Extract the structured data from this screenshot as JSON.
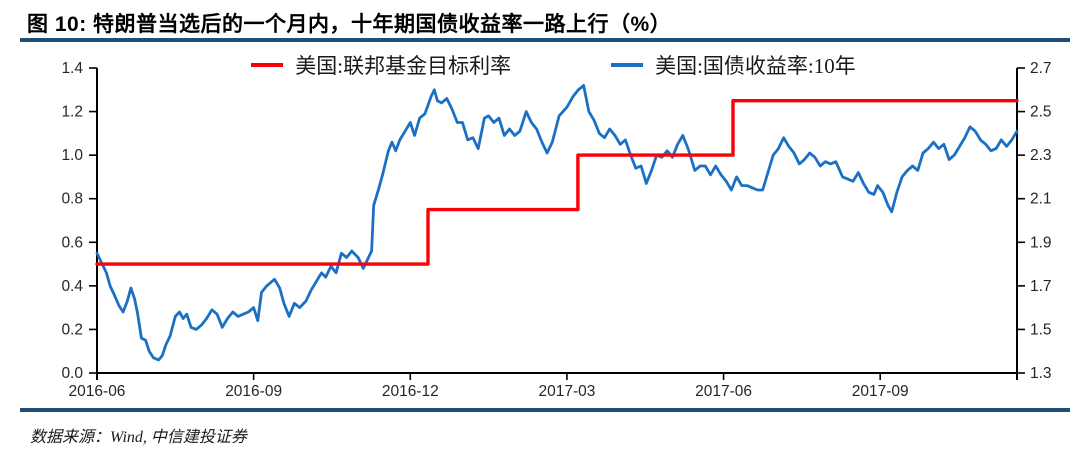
{
  "header": {
    "title": "图 10: 特朗普当选后的一个月内，十年期国债收益率一路上行（%）"
  },
  "footer": {
    "source": "数据来源：Wind, 中信建投证券"
  },
  "colors": {
    "rule_navy": "#1F4E79",
    "fed_funds_red": "#F90309",
    "treasury_blue": "#1C70C4",
    "axis_black": "#000000",
    "tick_text": "#262626"
  },
  "chart_data": {
    "type": "line",
    "title": "特朗普当选后的一个月内，十年期国债收益率一路上行（%）",
    "legend_position": "top-center",
    "grid": false,
    "legend": [
      {
        "label": "美国:联邦基金目标利率",
        "color": "#F90309"
      },
      {
        "label": "美国:国债收益率:10年",
        "color": "#1C70C4"
      }
    ],
    "x_axis": {
      "unit": "months since 2016-06",
      "range_months": [
        0,
        17.62
      ],
      "ticks": [
        {
          "m": 0,
          "label": "2016-06"
        },
        {
          "m": 3,
          "label": "2016-09"
        },
        {
          "m": 6,
          "label": "2016-12"
        },
        {
          "m": 9,
          "label": "2017-03"
        },
        {
          "m": 12,
          "label": "2017-06"
        },
        {
          "m": 15,
          "label": "2017-09"
        },
        {
          "m": 17.62,
          "label": ""
        }
      ]
    },
    "left_axis": {
      "min": 0.0,
      "max": 1.4,
      "ticks": [
        "0.0",
        "0.2",
        "0.4",
        "0.6",
        "0.8",
        "1.0",
        "1.2",
        "1.4"
      ]
    },
    "right_axis": {
      "min": 1.3,
      "max": 2.7,
      "ticks": [
        "1.3",
        "1.5",
        "1.7",
        "1.9",
        "2.1",
        "2.3",
        "2.5",
        "2.7"
      ]
    },
    "series": [
      {
        "name": "美国:国债收益率:10年",
        "data_name": "treasury-10y-line",
        "axis": "right",
        "color": "#1C70C4",
        "width": 2.8,
        "z": 0,
        "points": [
          [
            0.0,
            1.85
          ],
          [
            0.1,
            1.8
          ],
          [
            0.18,
            1.76
          ],
          [
            0.25,
            1.7
          ],
          [
            0.33,
            1.66
          ],
          [
            0.42,
            1.61
          ],
          [
            0.5,
            1.58
          ],
          [
            0.58,
            1.63
          ],
          [
            0.65,
            1.69
          ],
          [
            0.72,
            1.64
          ],
          [
            0.78,
            1.57
          ],
          [
            0.85,
            1.46
          ],
          [
            0.93,
            1.45
          ],
          [
            1.0,
            1.4
          ],
          [
            1.08,
            1.37
          ],
          [
            1.18,
            1.36
          ],
          [
            1.25,
            1.38
          ],
          [
            1.32,
            1.43
          ],
          [
            1.4,
            1.47
          ],
          [
            1.5,
            1.56
          ],
          [
            1.58,
            1.58
          ],
          [
            1.65,
            1.55
          ],
          [
            1.72,
            1.57
          ],
          [
            1.8,
            1.51
          ],
          [
            1.9,
            1.5
          ],
          [
            2.0,
            1.52
          ],
          [
            2.1,
            1.55
          ],
          [
            2.2,
            1.59
          ],
          [
            2.3,
            1.57
          ],
          [
            2.4,
            1.51
          ],
          [
            2.5,
            1.55
          ],
          [
            2.6,
            1.58
          ],
          [
            2.7,
            1.56
          ],
          [
            2.8,
            1.57
          ],
          [
            2.9,
            1.58
          ],
          [
            3.0,
            1.6
          ],
          [
            3.08,
            1.54
          ],
          [
            3.15,
            1.67
          ],
          [
            3.25,
            1.7
          ],
          [
            3.4,
            1.73
          ],
          [
            3.5,
            1.69
          ],
          [
            3.58,
            1.62
          ],
          [
            3.68,
            1.56
          ],
          [
            3.78,
            1.62
          ],
          [
            3.88,
            1.6
          ],
          [
            4.0,
            1.63
          ],
          [
            4.1,
            1.68
          ],
          [
            4.2,
            1.72
          ],
          [
            4.3,
            1.76
          ],
          [
            4.38,
            1.74
          ],
          [
            4.48,
            1.79
          ],
          [
            4.58,
            1.76
          ],
          [
            4.68,
            1.85
          ],
          [
            4.78,
            1.83
          ],
          [
            4.88,
            1.86
          ],
          [
            5.0,
            1.83
          ],
          [
            5.1,
            1.78
          ],
          [
            5.2,
            1.83
          ],
          [
            5.26,
            1.86
          ],
          [
            5.3,
            2.07
          ],
          [
            5.4,
            2.15
          ],
          [
            5.48,
            2.22
          ],
          [
            5.58,
            2.32
          ],
          [
            5.65,
            2.36
          ],
          [
            5.72,
            2.32
          ],
          [
            5.8,
            2.37
          ],
          [
            5.9,
            2.41
          ],
          [
            6.0,
            2.45
          ],
          [
            6.08,
            2.39
          ],
          [
            6.18,
            2.47
          ],
          [
            6.28,
            2.49
          ],
          [
            6.4,
            2.57
          ],
          [
            6.46,
            2.6
          ],
          [
            6.52,
            2.55
          ],
          [
            6.6,
            2.54
          ],
          [
            6.7,
            2.56
          ],
          [
            6.8,
            2.51
          ],
          [
            6.9,
            2.45
          ],
          [
            7.0,
            2.45
          ],
          [
            7.1,
            2.37
          ],
          [
            7.2,
            2.38
          ],
          [
            7.3,
            2.33
          ],
          [
            7.42,
            2.47
          ],
          [
            7.5,
            2.48
          ],
          [
            7.6,
            2.45
          ],
          [
            7.7,
            2.47
          ],
          [
            7.8,
            2.39
          ],
          [
            7.9,
            2.42
          ],
          [
            8.0,
            2.39
          ],
          [
            8.1,
            2.41
          ],
          [
            8.22,
            2.5
          ],
          [
            8.32,
            2.45
          ],
          [
            8.42,
            2.42
          ],
          [
            8.52,
            2.36
          ],
          [
            8.62,
            2.31
          ],
          [
            8.72,
            2.36
          ],
          [
            8.85,
            2.48
          ],
          [
            9.0,
            2.52
          ],
          [
            9.12,
            2.57
          ],
          [
            9.22,
            2.6
          ],
          [
            9.32,
            2.62
          ],
          [
            9.42,
            2.5
          ],
          [
            9.52,
            2.46
          ],
          [
            9.62,
            2.4
          ],
          [
            9.72,
            2.38
          ],
          [
            9.82,
            2.42
          ],
          [
            9.92,
            2.39
          ],
          [
            10.02,
            2.35
          ],
          [
            10.12,
            2.37
          ],
          [
            10.22,
            2.3
          ],
          [
            10.32,
            2.24
          ],
          [
            10.42,
            2.25
          ],
          [
            10.52,
            2.17
          ],
          [
            10.62,
            2.23
          ],
          [
            10.72,
            2.3
          ],
          [
            10.82,
            2.29
          ],
          [
            10.92,
            2.32
          ],
          [
            11.02,
            2.29
          ],
          [
            11.12,
            2.35
          ],
          [
            11.22,
            2.39
          ],
          [
            11.32,
            2.33
          ],
          [
            11.45,
            2.23
          ],
          [
            11.55,
            2.25
          ],
          [
            11.65,
            2.25
          ],
          [
            11.75,
            2.21
          ],
          [
            11.85,
            2.25
          ],
          [
            11.95,
            2.21
          ],
          [
            12.05,
            2.18
          ],
          [
            12.15,
            2.14
          ],
          [
            12.25,
            2.2
          ],
          [
            12.35,
            2.16
          ],
          [
            12.45,
            2.16
          ],
          [
            12.55,
            2.15
          ],
          [
            12.65,
            2.14
          ],
          [
            12.75,
            2.14
          ],
          [
            12.85,
            2.22
          ],
          [
            12.95,
            2.3
          ],
          [
            13.05,
            2.33
          ],
          [
            13.15,
            2.38
          ],
          [
            13.25,
            2.34
          ],
          [
            13.35,
            2.31
          ],
          [
            13.45,
            2.26
          ],
          [
            13.55,
            2.28
          ],
          [
            13.65,
            2.31
          ],
          [
            13.75,
            2.29
          ],
          [
            13.85,
            2.25
          ],
          [
            13.95,
            2.27
          ],
          [
            14.05,
            2.26
          ],
          [
            14.15,
            2.27
          ],
          [
            14.28,
            2.2
          ],
          [
            14.38,
            2.19
          ],
          [
            14.48,
            2.18
          ],
          [
            14.58,
            2.22
          ],
          [
            14.68,
            2.17
          ],
          [
            14.78,
            2.13
          ],
          [
            14.88,
            2.12
          ],
          [
            14.95,
            2.16
          ],
          [
            15.05,
            2.13
          ],
          [
            15.15,
            2.07
          ],
          [
            15.22,
            2.04
          ],
          [
            15.32,
            2.13
          ],
          [
            15.42,
            2.2
          ],
          [
            15.52,
            2.23
          ],
          [
            15.62,
            2.25
          ],
          [
            15.72,
            2.23
          ],
          [
            15.82,
            2.31
          ],
          [
            15.92,
            2.33
          ],
          [
            16.02,
            2.36
          ],
          [
            16.12,
            2.33
          ],
          [
            16.22,
            2.35
          ],
          [
            16.32,
            2.28
          ],
          [
            16.42,
            2.3
          ],
          [
            16.52,
            2.34
          ],
          [
            16.62,
            2.38
          ],
          [
            16.72,
            2.43
          ],
          [
            16.82,
            2.41
          ],
          [
            16.92,
            2.37
          ],
          [
            17.02,
            2.35
          ],
          [
            17.12,
            2.32
          ],
          [
            17.22,
            2.33
          ],
          [
            17.32,
            2.37
          ],
          [
            17.42,
            2.34
          ],
          [
            17.52,
            2.37
          ],
          [
            17.62,
            2.41
          ]
        ]
      },
      {
        "name": "美国:联邦基金目标利率",
        "data_name": "fed-funds-target-line",
        "axis": "left",
        "color": "#F90309",
        "width": 3.4,
        "z": 1,
        "points": [
          [
            0.0,
            0.5
          ],
          [
            6.34,
            0.5
          ],
          [
            6.34,
            0.75
          ],
          [
            9.21,
            0.75
          ],
          [
            9.21,
            1.0
          ],
          [
            12.18,
            1.0
          ],
          [
            12.18,
            1.25
          ],
          [
            17.62,
            1.25
          ]
        ]
      }
    ]
  }
}
